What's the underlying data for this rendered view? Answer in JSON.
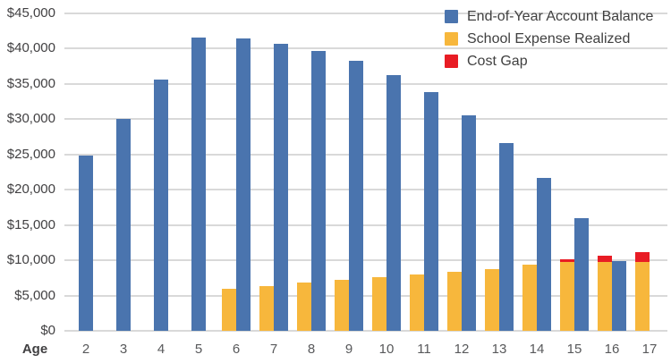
{
  "chart_data": {
    "type": "bar",
    "title": "",
    "xlabel": "Age",
    "ylabel": "",
    "ylim": [
      0,
      45000
    ],
    "y_tick_step": 5000,
    "grid": "horizontal",
    "legend_position": "top-right-inside",
    "categories": [
      "2",
      "3",
      "4",
      "5",
      "6",
      "7",
      "8",
      "9",
      "10",
      "11",
      "12",
      "13",
      "14",
      "15",
      "16",
      "17"
    ],
    "series": [
      {
        "name": "End-of-Year Account Balance",
        "color": "#4a74ae",
        "values": [
          24800,
          30100,
          35600,
          41600,
          41400,
          40700,
          39700,
          38300,
          36300,
          33900,
          30600,
          26600,
          21700,
          16000,
          9900,
          null
        ]
      },
      {
        "name": "School Expense Realized",
        "color": "#f7b73c",
        "values": [
          null,
          null,
          null,
          null,
          5900,
          6300,
          6800,
          7200,
          7600,
          8000,
          8400,
          8700,
          9400,
          9700,
          9800,
          9800
        ]
      },
      {
        "name": "Cost Gap",
        "color": "#e81c24",
        "stacked_on": "School Expense Realized",
        "values": [
          null,
          null,
          null,
          null,
          null,
          null,
          null,
          null,
          null,
          null,
          null,
          null,
          null,
          400,
          900,
          1400
        ]
      }
    ]
  },
  "axis": {
    "x_title": "Age",
    "y_tick_labels": [
      "$0",
      "$5,000",
      "$10,000",
      "$15,000",
      "$20,000",
      "$25,000",
      "$30,000",
      "$35,000",
      "$40,000",
      "$45,000"
    ]
  },
  "legend": {
    "items": [
      {
        "label": "End-of-Year Account Balance",
        "color": "#4a74ae"
      },
      {
        "label": "School Expense Realized",
        "color": "#f7b73c"
      },
      {
        "label": "Cost Gap",
        "color": "#e81c24"
      }
    ]
  }
}
